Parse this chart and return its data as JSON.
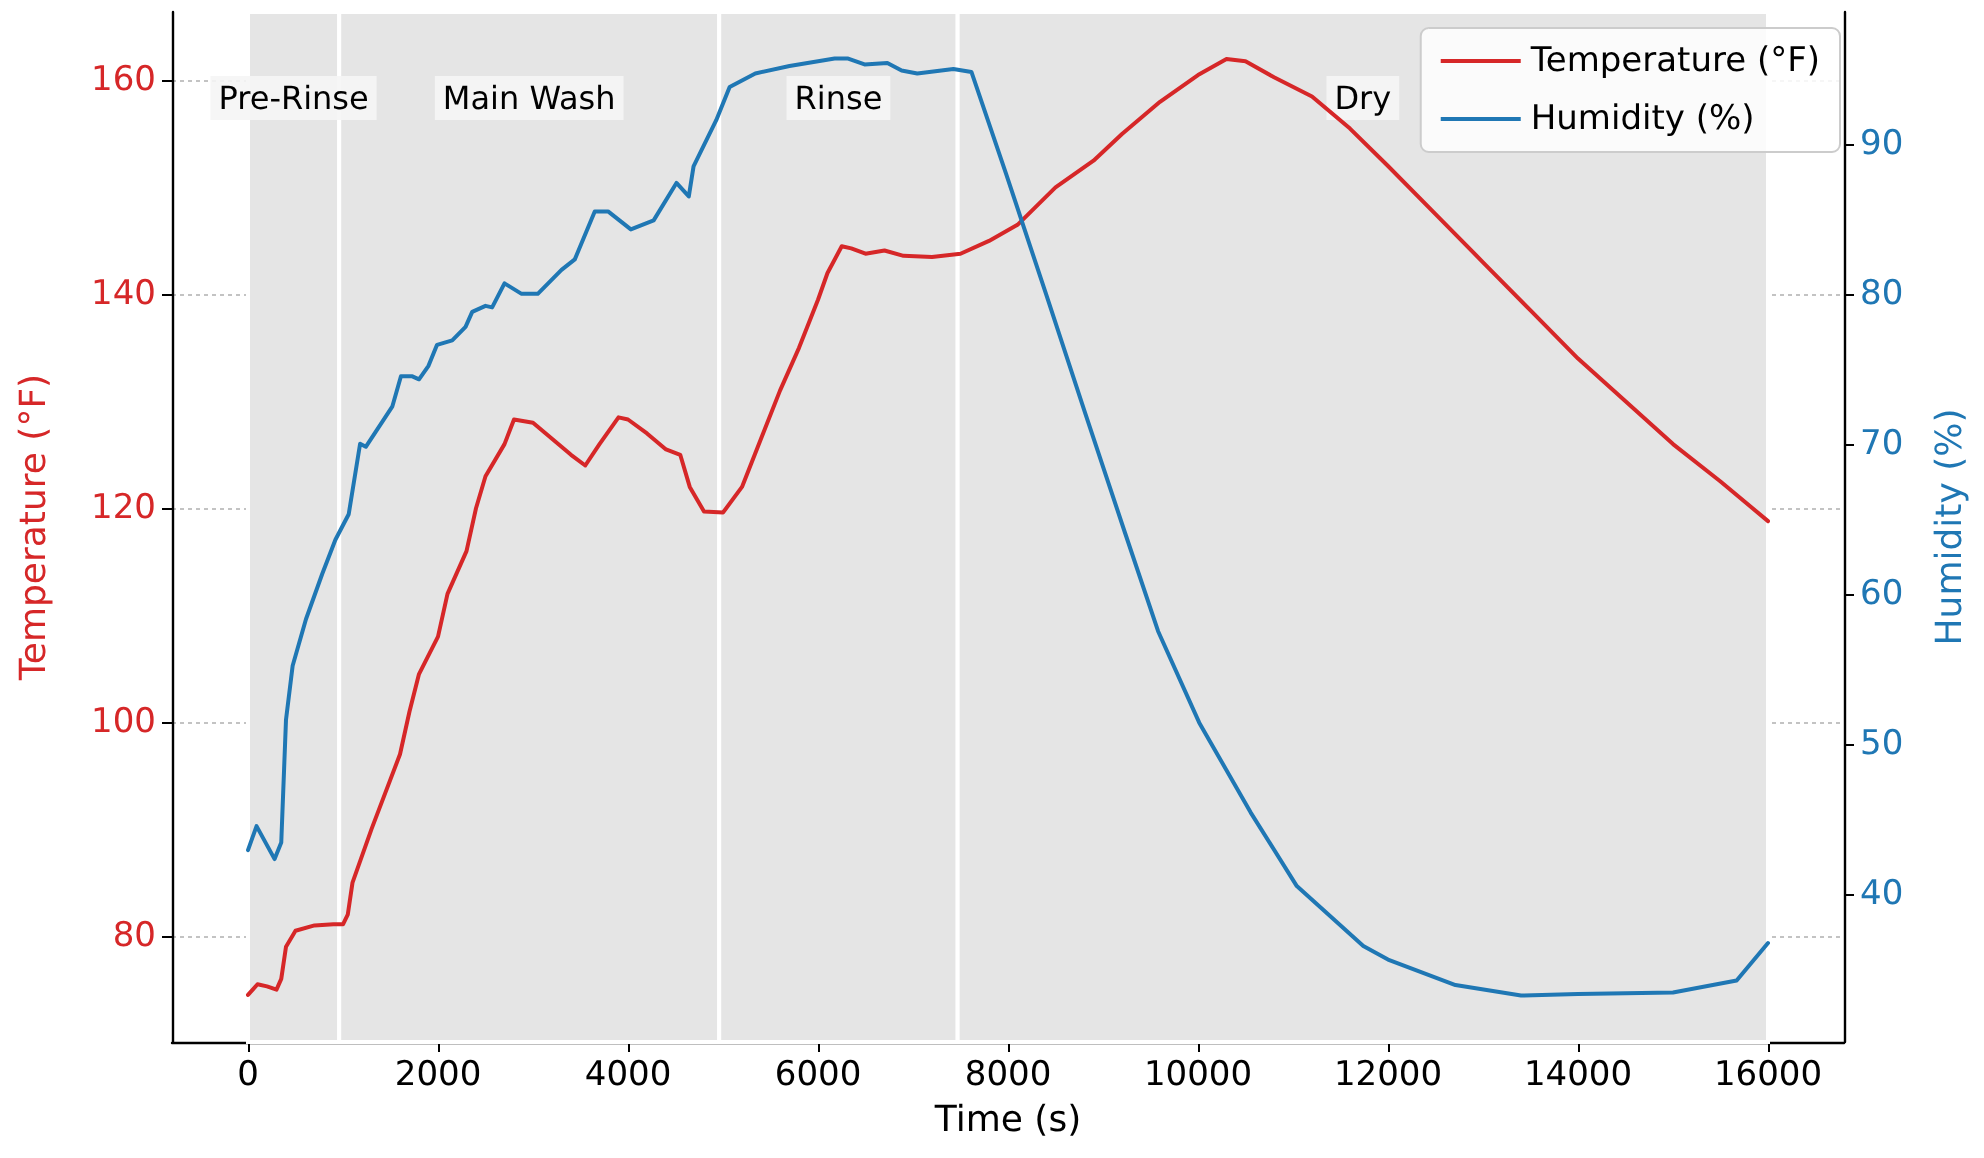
{
  "chart_data": {
    "type": "line",
    "xlabel": "Time (s)",
    "ylabel": "Temperature (°F)",
    "y2label": "Humidity (%)",
    "xlim": [
      -800,
      16800
    ],
    "xticks": [
      0,
      2000,
      4000,
      6000,
      8000,
      10000,
      12000,
      14000,
      16000
    ],
    "ylim": [
      70.1,
      166.4
    ],
    "yticks": [
      80,
      100,
      120,
      140,
      160
    ],
    "y2lim": [
      30.1,
      98.8
    ],
    "y2ticks": [
      40,
      50,
      60,
      70,
      80,
      90
    ],
    "grid": true,
    "legend": "top right",
    "marker": "none",
    "bands": [
      {
        "axis": "x",
        "from": 0,
        "to": 960,
        "label": "Pre-Rinse",
        "color": "#e5e5e5"
      },
      {
        "axis": "x",
        "from": 960,
        "to": 4960,
        "label": "Main Wash",
        "color": "#e5e5e5"
      },
      {
        "axis": "x",
        "from": 4960,
        "to": 7470,
        "label": "Rinse",
        "color": "#e5e5e5"
      },
      {
        "axis": "x",
        "from": 7470,
        "to": 16000,
        "label": "Dry",
        "color": "#e5e5e5"
      }
    ],
    "series": [
      {
        "name": "Temperature (°F)",
        "color": "#d62728",
        "x": [
          0,
          100,
          200,
          300,
          350,
          400,
          500,
          700,
          900,
          1000,
          1050,
          1100,
          1300,
          1600,
          1700,
          1800,
          2000,
          2100,
          2300,
          2400,
          2500,
          2700,
          2800,
          3000,
          3200,
          3400,
          3550,
          3700,
          3900,
          4000,
          4200,
          4400,
          4550,
          4650,
          4800,
          5000,
          5200,
          5400,
          5600,
          5800,
          6000,
          6100,
          6250,
          6350,
          6500,
          6700,
          6900,
          7200,
          7500,
          7800,
          8100,
          8500,
          8900,
          9200,
          9600,
          10000,
          10300,
          10500,
          10800,
          11200,
          11600,
          12000,
          12500,
          13000,
          13500,
          14000,
          14500,
          15000,
          15500,
          16000
        ],
        "values": [
          74.5,
          75.5,
          75.3,
          75,
          76,
          79,
          80.5,
          81,
          81.1,
          81.1,
          82,
          85,
          90,
          97,
          101,
          104.5,
          108,
          112,
          116,
          120,
          123,
          126,
          128.3,
          128,
          126.5,
          125,
          124,
          126,
          128.5,
          128.3,
          127,
          125.5,
          125,
          122,
          119.7,
          119.6,
          122,
          126.5,
          131,
          135,
          139.5,
          142,
          144.5,
          144.3,
          143.8,
          144.1,
          143.6,
          143.5,
          143.8,
          145,
          146.5,
          150,
          152.5,
          155,
          158,
          160.5,
          162,
          161.8,
          160.3,
          158.5,
          155.5,
          152,
          147.5,
          143,
          138.5,
          134,
          130,
          126,
          122.5,
          118.8
        ]
      },
      {
        "name": "Humidity (%)",
        "color": "#1f77b4",
        "axis": "y2",
        "x": [
          0,
          90,
          280,
          350,
          400,
          470,
          610,
          780,
          920,
          1060,
          1180,
          1240,
          1520,
          1610,
          1730,
          1800,
          1900,
          1990,
          2150,
          2290,
          2360,
          2500,
          2570,
          2700,
          2880,
          3050,
          3300,
          3440,
          3650,
          3790,
          4030,
          4270,
          4510,
          4640,
          4690,
          4930,
          5070,
          5340,
          5700,
          6175,
          6310,
          6490,
          6730,
          6880,
          7045,
          7425,
          7615,
          7980,
          8400,
          8815,
          9235,
          9580,
          10013,
          10555,
          11040,
          11740,
          12000,
          12710,
          13400,
          14000,
          15000,
          15670,
          16000
        ],
        "values": [
          42.9,
          44.5,
          42.3,
          43.4,
          51.6,
          55.2,
          58.3,
          61.3,
          63.6,
          65.3,
          70,
          69.8,
          72.5,
          74.5,
          74.5,
          74.3,
          75.2,
          76.6,
          76.9,
          77.8,
          78.8,
          79.2,
          79.1,
          80.7,
          80,
          80,
          81.6,
          82.3,
          85.5,
          85.5,
          84.3,
          84.9,
          87.4,
          86.5,
          88.5,
          91.6,
          93.8,
          94.7,
          95.2,
          95.7,
          95.7,
          95.3,
          95.4,
          94.9,
          94.7,
          95,
          94.8,
          88,
          80,
          72,
          64,
          57.5,
          51.4,
          45.4,
          40.5,
          36.5,
          35.6,
          33.9,
          33.2,
          33.3,
          33.4,
          34.2,
          36.7
        ]
      }
    ]
  }
}
